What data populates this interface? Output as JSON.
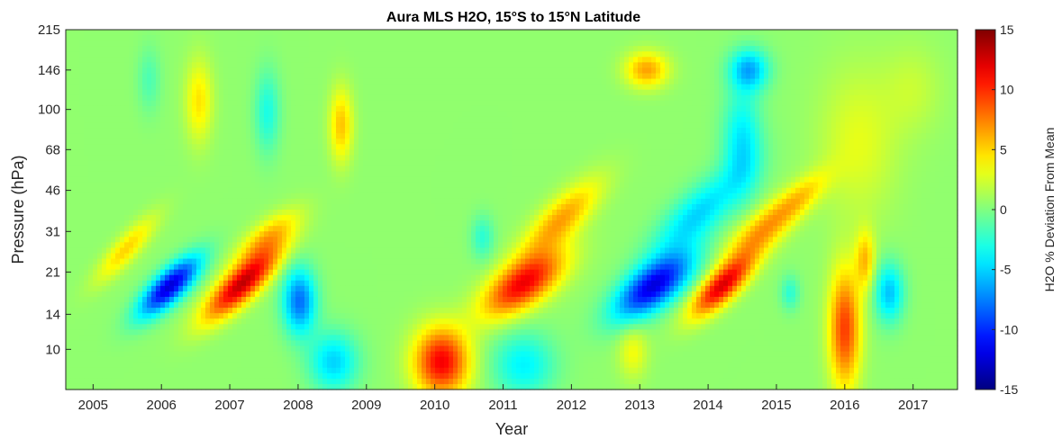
{
  "chart_data": {
    "type": "heatmap",
    "title": "Aura MLS H2O, 15°S to 15°N Latitude",
    "xlabel": "Year",
    "ylabel": "Pressure (hPa)",
    "colorbar_label": "H2O % Deviation From Mean",
    "colormap": "jet",
    "x_ticks": [
      2005,
      2006,
      2007,
      2008,
      2009,
      2010,
      2011,
      2012,
      2013,
      2014,
      2015,
      2016,
      2017
    ],
    "xlim": [
      2004.6,
      2017.65
    ],
    "y_scale": "log",
    "y_ticks": [
      10,
      14,
      21,
      31,
      46,
      68,
      100,
      146,
      215
    ],
    "ylim": [
      215,
      6.8
    ],
    "clim": [
      -15,
      15
    ],
    "colorbar_ticks": [
      15,
      10,
      5,
      0,
      -5,
      -10,
      -15
    ],
    "background_value": 0.5,
    "features": [
      {
        "t": 2005.48,
        "p": 56,
        "value": 4.5,
        "st": 0.16,
        "sp": 0.22,
        "tilt": -1.2
      },
      {
        "t": 2005.82,
        "p": 11,
        "value": -2,
        "st": 0.12,
        "sp": 0.22
      },
      {
        "t": 2006.12,
        "p": 80,
        "value": -13,
        "st": 0.2,
        "sp": 0.2,
        "tilt": -1.2
      },
      {
        "t": 2006.55,
        "p": 13.5,
        "value": 4,
        "st": 0.14,
        "sp": 0.28
      },
      {
        "t": 2007.18,
        "p": 78,
        "value": 12.5,
        "st": 0.22,
        "sp": 0.24,
        "tilt": -1.3
      },
      {
        "t": 2007.55,
        "p": 50,
        "value": 5,
        "st": 0.22,
        "sp": 0.18,
        "tilt": -1.3
      },
      {
        "t": 2007.55,
        "p": 15,
        "value": -3.5,
        "st": 0.13,
        "sp": 0.28
      },
      {
        "t": 2008.02,
        "p": 92,
        "value": -8.5,
        "st": 0.17,
        "sp": 0.22
      },
      {
        "t": 2008.52,
        "p": 165,
        "value": -5.5,
        "st": 0.25,
        "sp": 0.2
      },
      {
        "t": 2008.63,
        "p": 17,
        "value": 5,
        "st": 0.12,
        "sp": 0.25
      },
      {
        "t": 2010.1,
        "p": 165,
        "value": 11,
        "st": 0.28,
        "sp": 0.23
      },
      {
        "t": 2010.7,
        "p": 50,
        "value": -3,
        "st": 0.12,
        "sp": 0.15
      },
      {
        "t": 2011.3,
        "p": 78,
        "value": 11,
        "st": 0.32,
        "sp": 0.22,
        "tilt": -1.2
      },
      {
        "t": 2011.85,
        "p": 42,
        "value": 6,
        "st": 0.25,
        "sp": 0.26,
        "tilt": -1.2
      },
      {
        "t": 2011.3,
        "p": 170,
        "value": -4.5,
        "st": 0.32,
        "sp": 0.22
      },
      {
        "t": 2012.9,
        "p": 150,
        "value": 3,
        "st": 0.15,
        "sp": 0.18
      },
      {
        "t": 2013.2,
        "p": 80,
        "value": -12.5,
        "st": 0.3,
        "sp": 0.22,
        "tilt": -1.2
      },
      {
        "t": 2013.85,
        "p": 40,
        "value": -5.5,
        "st": 0.3,
        "sp": 0.3,
        "tilt": -1.2
      },
      {
        "t": 2014.5,
        "p": 20,
        "value": -5,
        "st": 0.2,
        "sp": 0.35
      },
      {
        "t": 2014.6,
        "p": 10,
        "value": -6.5,
        "st": 0.2,
        "sp": 0.14
      },
      {
        "t": 2013.1,
        "p": 10,
        "value": 6,
        "st": 0.22,
        "sp": 0.12
      },
      {
        "t": 2014.2,
        "p": 80,
        "value": 11.5,
        "st": 0.2,
        "sp": 0.2,
        "tilt": -1.2
      },
      {
        "t": 2014.75,
        "p": 48,
        "value": 6,
        "st": 0.25,
        "sp": 0.22,
        "tilt": -1.2
      },
      {
        "t": 2015.35,
        "p": 34,
        "value": 4,
        "st": 0.2,
        "sp": 0.18,
        "tilt": -1.2
      },
      {
        "t": 2015.2,
        "p": 85,
        "value": -3,
        "st": 0.1,
        "sp": 0.12
      },
      {
        "t": 2016.0,
        "p": 120,
        "value": 9,
        "st": 0.16,
        "sp": 0.4
      },
      {
        "t": 2016.3,
        "p": 62,
        "value": 5,
        "st": 0.1,
        "sp": 0.2
      },
      {
        "t": 2016.65,
        "p": 85,
        "value": -6,
        "st": 0.15,
        "sp": 0.2
      },
      {
        "t": 2016.2,
        "p": 20,
        "value": 2.5,
        "st": 0.4,
        "sp": 0.5
      },
      {
        "t": 2017.0,
        "p": 12,
        "value": 1.5,
        "st": 0.3,
        "sp": 0.3
      }
    ]
  }
}
